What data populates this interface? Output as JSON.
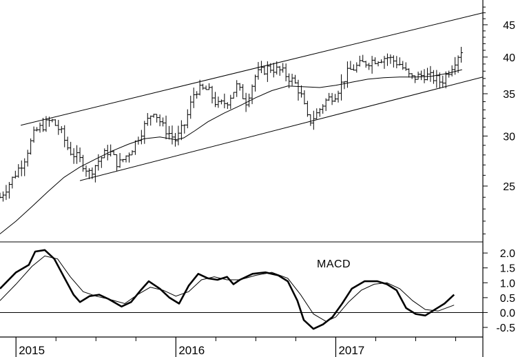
{
  "chart_data": [
    {
      "type": "ohlc",
      "panel": "price",
      "y_scale": "log",
      "ylim": [
        20.5,
        49
      ],
      "y_ticks": [
        {
          "value": 25,
          "label": "25"
        },
        {
          "value": 30,
          "label": "30"
        },
        {
          "value": 35,
          "label": "35"
        },
        {
          "value": 40,
          "label": "40"
        },
        {
          "value": 45,
          "label": "45"
        }
      ],
      "x_range": [
        2014.9,
        2017.92
      ],
      "x_ticks": [
        {
          "value": 2015.0,
          "label": "2015"
        },
        {
          "value": 2016.0,
          "label": "2016"
        },
        {
          "value": 2017.0,
          "label": "2017"
        }
      ],
      "price_anchors": [
        [
          2014.9,
          24.0
        ],
        [
          2014.97,
          25.5
        ],
        [
          2015.05,
          27.5
        ],
        [
          2015.12,
          30.5
        ],
        [
          2015.22,
          31.8
        ],
        [
          2015.28,
          30.5
        ],
        [
          2015.33,
          28.5
        ],
        [
          2015.4,
          27.5
        ],
        [
          2015.46,
          26.2
        ],
        [
          2015.52,
          27.5
        ],
        [
          2015.58,
          28.5
        ],
        [
          2015.64,
          27.0
        ],
        [
          2015.72,
          28.5
        ],
        [
          2015.8,
          31.0
        ],
        [
          2015.86,
          33.0
        ],
        [
          2015.92,
          31.0
        ],
        [
          2016.0,
          29.5
        ],
        [
          2016.06,
          31.5
        ],
        [
          2016.12,
          35.5
        ],
        [
          2016.2,
          35.5
        ],
        [
          2016.26,
          33.5
        ],
        [
          2016.32,
          34.0
        ],
        [
          2016.38,
          36.0
        ],
        [
          2016.44,
          34.0
        ],
        [
          2016.5,
          37.5
        ],
        [
          2016.58,
          38.5
        ],
        [
          2016.66,
          38.0
        ],
        [
          2016.74,
          36.5
        ],
        [
          2016.78,
          35.0
        ],
        [
          2016.83,
          31.5
        ],
        [
          2016.88,
          32.5
        ],
        [
          2016.93,
          34.0
        ],
        [
          2017.0,
          35.0
        ],
        [
          2017.08,
          38.0
        ],
        [
          2017.16,
          39.0
        ],
        [
          2017.24,
          39.6
        ],
        [
          2017.32,
          40.0
        ],
        [
          2017.4,
          39.0
        ],
        [
          2017.47,
          37.0
        ],
        [
          2017.55,
          37.5
        ],
        [
          2017.62,
          37.0
        ],
        [
          2017.66,
          36.5
        ],
        [
          2017.72,
          38.5
        ],
        [
          2017.77,
          40.5
        ],
        [
          2017.79,
          41.2
        ]
      ],
      "moving_average": [
        [
          2014.9,
          21.0
        ],
        [
          2015.0,
          22.0
        ],
        [
          2015.1,
          23.2
        ],
        [
          2015.2,
          24.5
        ],
        [
          2015.3,
          25.8
        ],
        [
          2015.4,
          26.8
        ],
        [
          2015.5,
          27.6
        ],
        [
          2015.6,
          28.4
        ],
        [
          2015.7,
          29.1
        ],
        [
          2015.8,
          29.7
        ],
        [
          2015.9,
          29.9
        ],
        [
          2016.0,
          29.6
        ],
        [
          2016.05,
          29.8
        ],
        [
          2016.12,
          30.6
        ],
        [
          2016.2,
          31.6
        ],
        [
          2016.3,
          32.6
        ],
        [
          2016.4,
          33.5
        ],
        [
          2016.5,
          34.5
        ],
        [
          2016.6,
          35.4
        ],
        [
          2016.7,
          36.0
        ],
        [
          2016.8,
          35.9
        ],
        [
          2016.9,
          35.8
        ],
        [
          2017.0,
          36.1
        ],
        [
          2017.1,
          36.5
        ],
        [
          2017.2,
          36.9
        ],
        [
          2017.3,
          37.1
        ],
        [
          2017.4,
          37.2
        ],
        [
          2017.5,
          37.2
        ],
        [
          2017.6,
          37.3
        ],
        [
          2017.7,
          37.7
        ],
        [
          2017.79,
          38.2
        ]
      ],
      "trendlines": [
        {
          "name": "upper-channel",
          "from": [
            2015.03,
            31.2
          ],
          "to": [
            2017.92,
            47.0
          ]
        },
        {
          "name": "lower-channel",
          "from": [
            2015.4,
            25.5
          ],
          "to": [
            2017.92,
            37.2
          ]
        }
      ]
    },
    {
      "type": "line",
      "panel": "macd",
      "title": "MACD",
      "ylim": [
        -0.8,
        2.35
      ],
      "y_ticks": [
        {
          "value": 2.0,
          "label": "2.0"
        },
        {
          "value": 1.5,
          "label": "1.5"
        },
        {
          "value": 1.0,
          "label": "1.0"
        },
        {
          "value": 0.5,
          "label": "0.5"
        },
        {
          "value": 0.0,
          "label": "0.0"
        },
        {
          "value": -0.5,
          "label": "-0.5"
        }
      ],
      "zero_line": 0,
      "series": [
        {
          "role": "macd",
          "points": [
            [
              2014.9,
              0.8
            ],
            [
              2015.0,
              1.35
            ],
            [
              2015.08,
              1.6
            ],
            [
              2015.12,
              2.05
            ],
            [
              2015.18,
              2.1
            ],
            [
              2015.24,
              1.8
            ],
            [
              2015.3,
              1.2
            ],
            [
              2015.36,
              0.6
            ],
            [
              2015.4,
              0.35
            ],
            [
              2015.46,
              0.55
            ],
            [
              2015.52,
              0.6
            ],
            [
              2015.58,
              0.45
            ],
            [
              2015.66,
              0.2
            ],
            [
              2015.72,
              0.35
            ],
            [
              2015.78,
              0.75
            ],
            [
              2015.83,
              1.05
            ],
            [
              2015.9,
              0.8
            ],
            [
              2015.96,
              0.5
            ],
            [
              2016.02,
              0.3
            ],
            [
              2016.08,
              0.9
            ],
            [
              2016.14,
              1.3
            ],
            [
              2016.2,
              1.15
            ],
            [
              2016.26,
              1.1
            ],
            [
              2016.32,
              1.2
            ],
            [
              2016.36,
              0.95
            ],
            [
              2016.4,
              1.1
            ],
            [
              2016.48,
              1.3
            ],
            [
              2016.56,
              1.35
            ],
            [
              2016.64,
              1.25
            ],
            [
              2016.7,
              1.05
            ],
            [
              2016.76,
              0.4
            ],
            [
              2016.8,
              -0.25
            ],
            [
              2016.86,
              -0.55
            ],
            [
              2016.92,
              -0.4
            ],
            [
              2016.98,
              -0.15
            ],
            [
              2017.04,
              0.3
            ],
            [
              2017.1,
              0.8
            ],
            [
              2017.18,
              1.05
            ],
            [
              2017.26,
              1.05
            ],
            [
              2017.32,
              0.95
            ],
            [
              2017.38,
              0.75
            ],
            [
              2017.44,
              0.15
            ],
            [
              2017.5,
              -0.05
            ],
            [
              2017.56,
              -0.1
            ],
            [
              2017.62,
              0.1
            ],
            [
              2017.68,
              0.3
            ],
            [
              2017.74,
              0.6
            ]
          ]
        },
        {
          "role": "signal",
          "points": [
            [
              2014.9,
              0.4
            ],
            [
              2015.0,
              0.95
            ],
            [
              2015.1,
              1.55
            ],
            [
              2015.18,
              1.9
            ],
            [
              2015.26,
              1.8
            ],
            [
              2015.34,
              1.2
            ],
            [
              2015.42,
              0.7
            ],
            [
              2015.5,
              0.55
            ],
            [
              2015.58,
              0.45
            ],
            [
              2015.68,
              0.3
            ],
            [
              2015.76,
              0.6
            ],
            [
              2015.84,
              0.85
            ],
            [
              2015.92,
              0.75
            ],
            [
              2016.0,
              0.55
            ],
            [
              2016.08,
              0.7
            ],
            [
              2016.16,
              1.1
            ],
            [
              2016.24,
              1.2
            ],
            [
              2016.32,
              1.1
            ],
            [
              2016.4,
              1.1
            ],
            [
              2016.5,
              1.25
            ],
            [
              2016.6,
              1.35
            ],
            [
              2016.7,
              1.15
            ],
            [
              2016.78,
              0.6
            ],
            [
              2016.86,
              -0.05
            ],
            [
              2016.94,
              -0.3
            ],
            [
              2017.0,
              -0.15
            ],
            [
              2017.08,
              0.35
            ],
            [
              2017.16,
              0.75
            ],
            [
              2017.24,
              0.95
            ],
            [
              2017.32,
              1.0
            ],
            [
              2017.4,
              0.8
            ],
            [
              2017.48,
              0.4
            ],
            [
              2017.56,
              0.1
            ],
            [
              2017.64,
              0.05
            ],
            [
              2017.74,
              0.25
            ]
          ]
        }
      ]
    }
  ],
  "colors": {
    "ink": "#000000",
    "background": "#ffffff"
  }
}
